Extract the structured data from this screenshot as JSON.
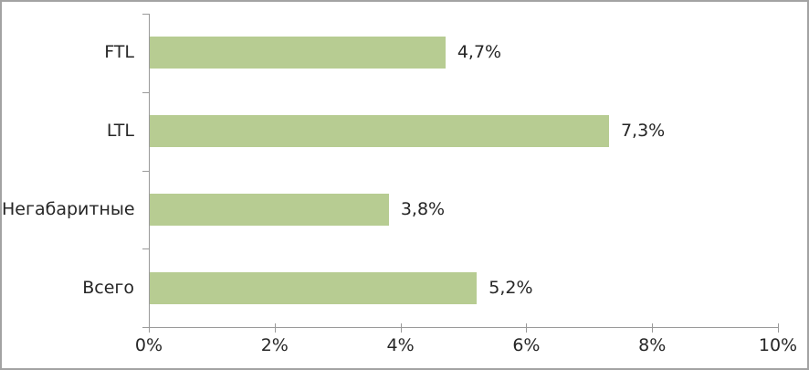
{
  "frame": {
    "background": "#ffffff",
    "border_color": "#a3a3a3"
  },
  "chart_data": {
    "type": "bar",
    "orientation": "horizontal",
    "title": "",
    "xlabel": "",
    "ylabel": "",
    "categories": [
      "FTL",
      "LTL",
      "Негабаритные",
      "Всего"
    ],
    "values": [
      4.7,
      7.3,
      3.8,
      5.2
    ],
    "value_labels": [
      "4,7%",
      "7,3%",
      "3,8%",
      "5,2%"
    ],
    "x_tick_values": [
      0,
      2,
      4,
      6,
      8,
      10
    ],
    "x_tick_labels": [
      "0%",
      "2%",
      "4%",
      "6%",
      "8%",
      "10%"
    ],
    "xlim": [
      0,
      10
    ],
    "grid": false,
    "legend": false,
    "bar_color": "#b7cc92",
    "axis_color": "#9a9a9a",
    "text_color": "#262626"
  }
}
